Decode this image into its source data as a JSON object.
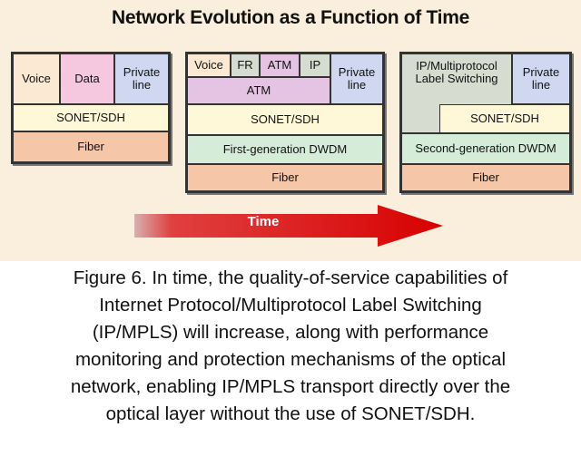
{
  "title": "Network Evolution as a Function of Time",
  "stage1": {
    "voice": "Voice",
    "data": "Data",
    "private_line": "Private line",
    "sonet": "SONET/SDH",
    "fiber": "Fiber"
  },
  "stage2": {
    "voice": "Voice",
    "fr": "FR",
    "atm_small": "ATM",
    "ip": "IP",
    "atm": "ATM",
    "private_line": "Private line",
    "sonet": "SONET/SDH",
    "dwdm": "First-generation DWDM",
    "fiber": "Fiber"
  },
  "stage3": {
    "ipmpls": "IP/Multiprotocol Label Switching",
    "private_line": "Private line",
    "sonet": "SONET/SDH",
    "dwdm": "Second-generation DWDM",
    "fiber": "Fiber"
  },
  "arrow_label": "Time",
  "caption_lines": [
    "Figure 6. In time, the quality-of-service capabilities of",
    "Internet Protocol/Multiprotocol Label Switching",
    "(IP/MPLS) will increase, along with performance",
    "monitoring and protection mechanisms of the optical",
    "network, enabling IP/MPLS transport directly over the",
    "optical layer without the use of SONET/SDH."
  ]
}
